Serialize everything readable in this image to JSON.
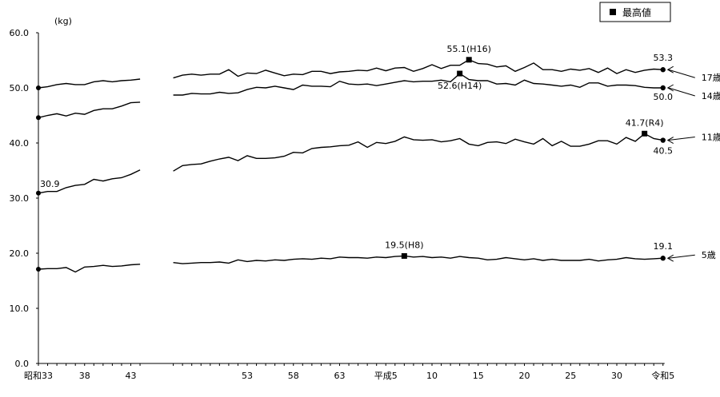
{
  "chart_data": {
    "type": "line",
    "unit_label": "(kg)",
    "y_range": [
      0,
      60
    ],
    "y_ticks": [
      "0.0",
      "10.0",
      "20.0",
      "30.0",
      "40.0",
      "50.0",
      "60.0"
    ],
    "x_ticks": [
      {
        "idx": 0,
        "label": "昭和33"
      },
      {
        "idx": 5,
        "label": "38"
      },
      {
        "idx": 10,
        "label": "43"
      },
      {
        "idx": 20,
        "label": "53"
      },
      {
        "idx": 25,
        "label": "58"
      },
      {
        "idx": 30,
        "label": "63"
      },
      {
        "idx": 35,
        "label": "平成5"
      },
      {
        "idx": 40,
        "label": "10"
      },
      {
        "idx": 45,
        "label": "15"
      },
      {
        "idx": 50,
        "label": "20"
      },
      {
        "idx": 55,
        "label": "25"
      },
      {
        "idx": 60,
        "label": "30"
      },
      {
        "idx": 65,
        "label": "令和5"
      }
    ],
    "gap_after_index": 11,
    "legend": "最高値",
    "series": [
      {
        "name": "17歳",
        "values": [
          50.0,
          50.2,
          50.6,
          50.8,
          50.6,
          50.6,
          51.1,
          51.3,
          51.1,
          51.3,
          51.4,
          51.6,
          51.8,
          52.3,
          52.5,
          52.3,
          52.5,
          52.5,
          53.3,
          52.1,
          52.7,
          52.6,
          53.2,
          52.7,
          52.2,
          52.5,
          52.4,
          53.0,
          53.0,
          52.6,
          52.9,
          53.0,
          53.2,
          53.1,
          53.6,
          53.1,
          53.6,
          53.7,
          53.0,
          53.5,
          54.2,
          53.5,
          54.1,
          54.1,
          55.1,
          54.4,
          54.3,
          53.8,
          54.0,
          53.0,
          53.7,
          54.5,
          53.3,
          53.3,
          53.0,
          53.4,
          53.2,
          53.5,
          52.8,
          53.6,
          52.6,
          53.3,
          52.8,
          53.2,
          53.4,
          53.3
        ],
        "label_end": "53.3"
      },
      {
        "name": "14歳",
        "values": [
          44.6,
          45.0,
          45.3,
          44.9,
          45.4,
          45.2,
          45.9,
          46.2,
          46.2,
          46.7,
          47.3,
          47.4,
          48.7,
          48.7,
          49.0,
          48.9,
          48.9,
          49.2,
          49.0,
          49.1,
          49.7,
          50.1,
          50.0,
          50.3,
          50.0,
          49.7,
          50.5,
          50.3,
          50.3,
          50.2,
          51.2,
          50.7,
          50.6,
          50.7,
          50.4,
          50.7,
          51.0,
          51.3,
          51.1,
          51.2,
          51.2,
          51.4,
          51.1,
          52.6,
          51.5,
          51.3,
          51.3,
          50.7,
          50.8,
          50.5,
          51.4,
          50.8,
          50.7,
          50.5,
          50.3,
          50.5,
          50.1,
          50.9,
          50.9,
          50.3,
          50.5,
          50.5,
          50.4,
          50.1,
          50.0,
          50.0
        ],
        "label_end": "50.0"
      },
      {
        "name": "11歳",
        "values": [
          30.9,
          31.2,
          31.2,
          31.9,
          32.3,
          32.5,
          33.4,
          33.1,
          33.5,
          33.7,
          34.3,
          35.1,
          34.9,
          35.9,
          36.1,
          36.2,
          36.7,
          37.1,
          37.4,
          36.8,
          37.7,
          37.2,
          37.2,
          37.3,
          37.6,
          38.3,
          38.2,
          39.0,
          39.2,
          39.3,
          39.5,
          39.6,
          40.2,
          39.2,
          40.1,
          39.9,
          40.3,
          41.1,
          40.6,
          40.5,
          40.6,
          40.2,
          40.4,
          40.8,
          39.8,
          39.5,
          40.1,
          40.2,
          39.9,
          40.7,
          40.2,
          39.8,
          40.8,
          39.5,
          40.3,
          39.4,
          39.4,
          39.8,
          40.4,
          40.4,
          39.8,
          41.0,
          40.3,
          41.7,
          40.8,
          40.5
        ],
        "label_end": "40.5"
      },
      {
        "name": "5歳",
        "values": [
          17.1,
          17.2,
          17.2,
          17.4,
          16.6,
          17.5,
          17.6,
          17.8,
          17.6,
          17.7,
          17.9,
          18.0,
          18.3,
          18.1,
          18.2,
          18.3,
          18.3,
          18.4,
          18.2,
          18.8,
          18.5,
          18.7,
          18.6,
          18.8,
          18.7,
          18.9,
          19.0,
          18.9,
          19.1,
          19.0,
          19.3,
          19.2,
          19.2,
          19.1,
          19.3,
          19.2,
          19.4,
          19.5,
          19.3,
          19.4,
          19.2,
          19.3,
          19.1,
          19.4,
          19.2,
          19.1,
          18.8,
          18.9,
          19.2,
          19.0,
          18.8,
          19.0,
          18.7,
          18.9,
          18.7,
          18.7,
          18.7,
          18.9,
          18.6,
          18.8,
          18.9,
          19.2,
          19.0,
          18.9,
          19.0,
          19.1
        ],
        "label_end": "19.1"
      }
    ],
    "annotations": [
      {
        "series": "17歳",
        "idx": 44,
        "text": "55.1(H16)",
        "pos": "above"
      },
      {
        "series": "14歳",
        "idx": 43,
        "text": "52.6(H14)",
        "pos": "below"
      },
      {
        "series": "11歳",
        "idx": 63,
        "text": "41.7(R4)",
        "pos": "above"
      },
      {
        "series": "5歳",
        "idx": 37,
        "text": "19.5(H8)",
        "pos": "above"
      }
    ],
    "start_labels": [
      {
        "series": "11歳",
        "text": "30.9"
      }
    ]
  }
}
